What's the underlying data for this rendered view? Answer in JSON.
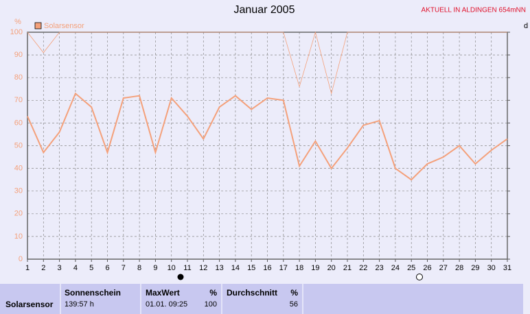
{
  "chart_data": {
    "type": "line",
    "title": "Januar 2005",
    "subtitle": "AKTUELL IN ALDINGEN 654mNN",
    "y_label": "%",
    "right_label": "d",
    "x": [
      1,
      2,
      3,
      4,
      5,
      6,
      7,
      8,
      9,
      10,
      11,
      12,
      13,
      14,
      15,
      16,
      17,
      18,
      19,
      20,
      21,
      22,
      23,
      24,
      25,
      26,
      27,
      28,
      29,
      30,
      31
    ],
    "xlim": [
      1,
      31
    ],
    "xticks": [
      1,
      2,
      3,
      4,
      5,
      6,
      7,
      8,
      9,
      10,
      11,
      12,
      13,
      14,
      15,
      16,
      17,
      18,
      19,
      20,
      21,
      22,
      23,
      24,
      25,
      26,
      27,
      28,
      29,
      30,
      31
    ],
    "ylim": [
      0,
      100
    ],
    "yticks": [
      0,
      10,
      20,
      30,
      40,
      50,
      60,
      70,
      80,
      90,
      100
    ],
    "grid": true,
    "series": [
      {
        "name": "Solarsensor",
        "color": "#f4a07a",
        "width": 2,
        "values": [
          63,
          47,
          56,
          73,
          67,
          47,
          71,
          72,
          47,
          71,
          63,
          53,
          67,
          72,
          66,
          71,
          70,
          41,
          52,
          40,
          49,
          59,
          61,
          40,
          35,
          42,
          45,
          50,
          42,
          48,
          53
        ]
      },
      {
        "color": "#f4a07a",
        "width": 0.8,
        "values": [
          100,
          91,
          100,
          100,
          100,
          100,
          100,
          100,
          100,
          100,
          100,
          100,
          100,
          100,
          100,
          100,
          100,
          76,
          100,
          73,
          100,
          100,
          100,
          100,
          100,
          100,
          100,
          100,
          100,
          100,
          100
        ]
      }
    ]
  },
  "table": {
    "row_label": "Solarsensor",
    "columns": [
      {
        "header": "Sonnenschein",
        "value": "139:57 h"
      },
      {
        "header": "MaxWert",
        "unit": "%",
        "value": "01.01.  09:25",
        "value2": "100"
      },
      {
        "header": "Durchschnitt",
        "unit": "%",
        "value2": "56"
      }
    ]
  }
}
